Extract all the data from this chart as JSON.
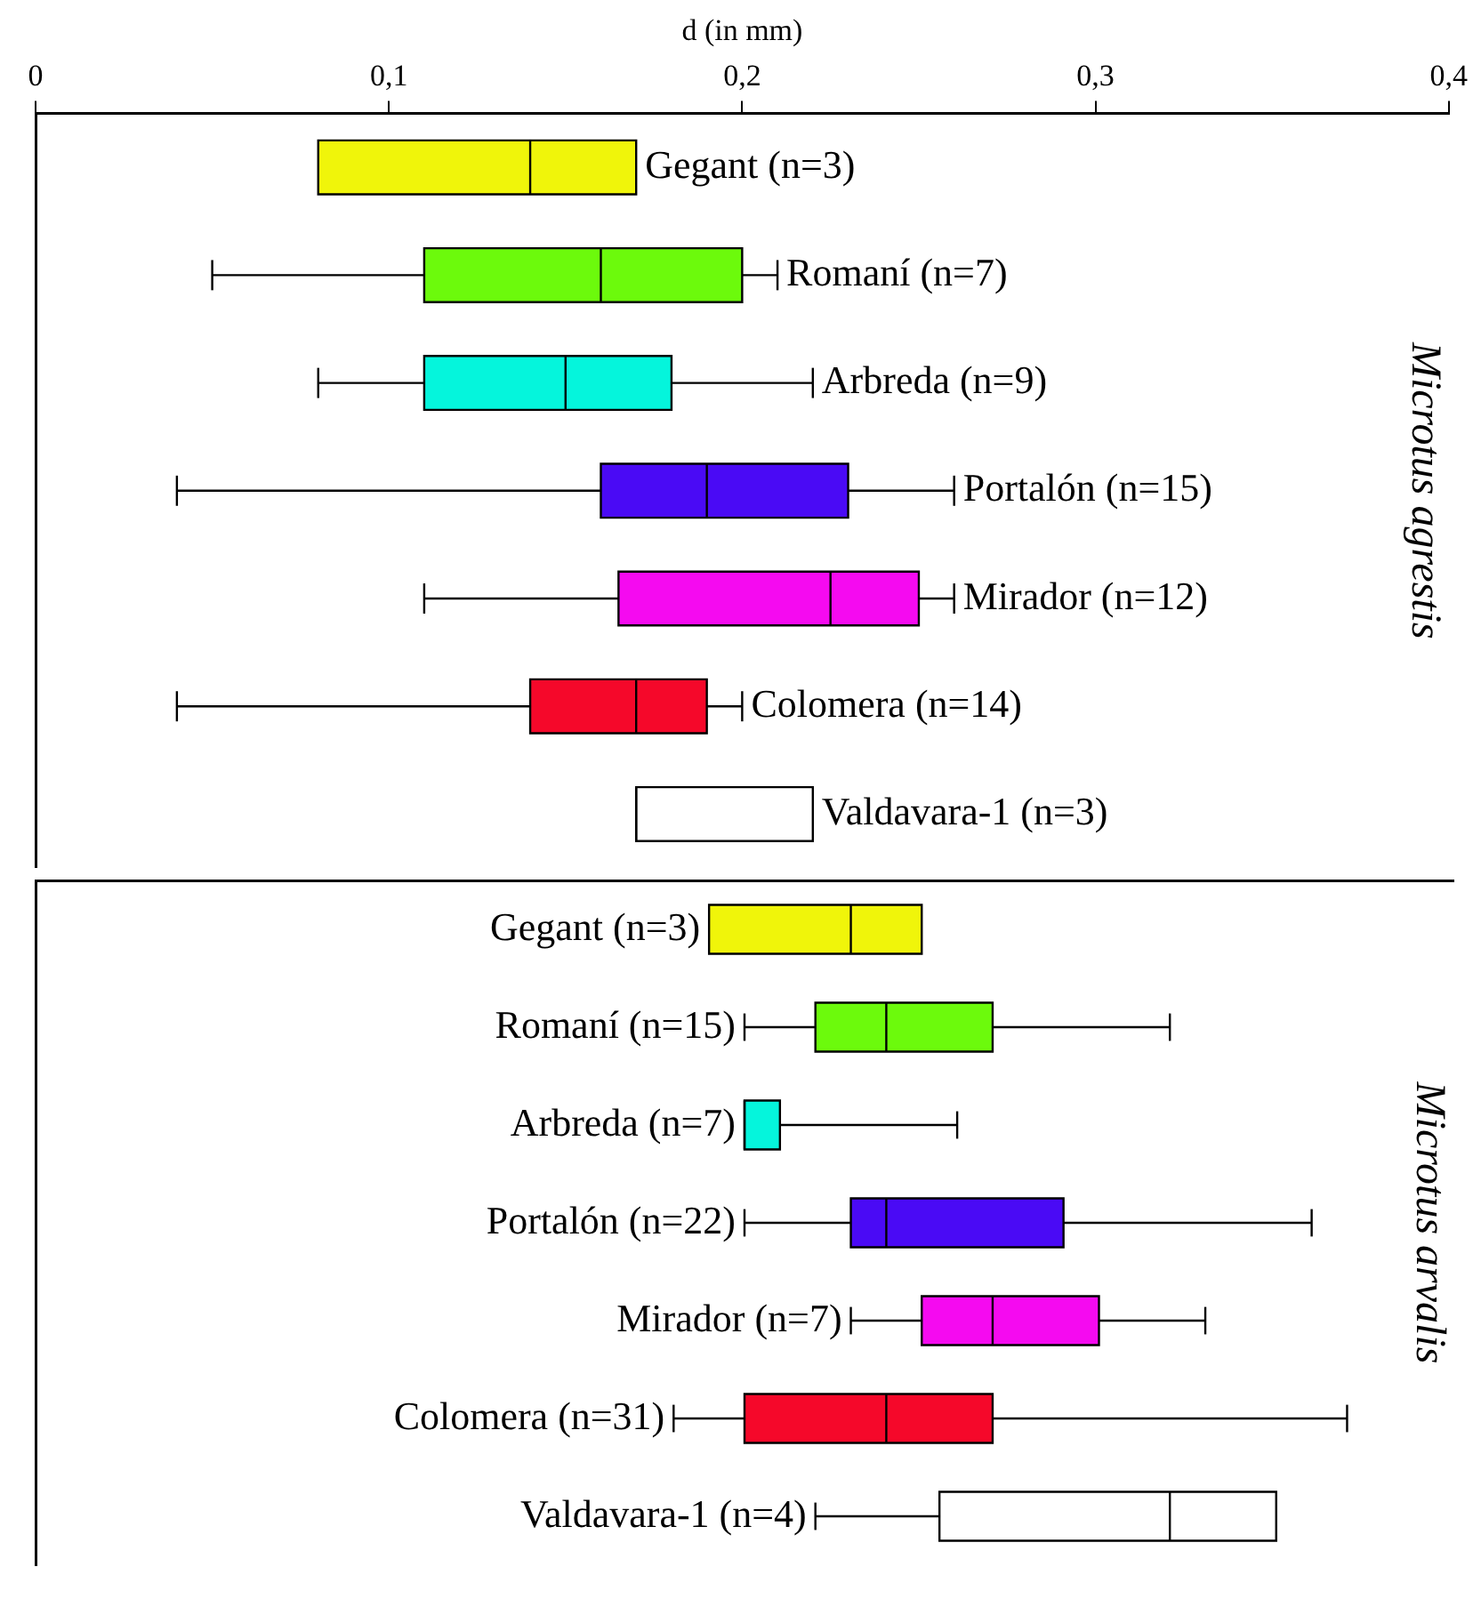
{
  "chart_data": [
    {
      "type": "box",
      "orientation": "horizontal",
      "xlabel": "d (in mm)",
      "ylabel": "Microtus agrestis",
      "tick_labels": "x",
      "grid": false,
      "legend": false,
      "categories": [
        "Gegant (n=3)",
        "Romaní (n=7)",
        "Arbreda (n=9)",
        "Portalón (n=15)",
        "Mirador (n=12)",
        "Colomera (n=14)",
        "Valdavara-1 (n=3)"
      ],
      "colors": [
        "#f0f50a",
        "#6cfa0c",
        "#05f5dc",
        "#4a0af5",
        "#f50af0",
        "#f5082a",
        "#ffffff"
      ],
      "boxes": [
        {
          "low": 0.08,
          "q1": 0.08,
          "median": 0.14,
          "q3": 0.17,
          "high": 0.17
        },
        {
          "low": 0.05,
          "q1": 0.11,
          "median": 0.16,
          "q3": 0.2,
          "high": 0.21
        },
        {
          "low": 0.08,
          "q1": 0.11,
          "median": 0.15,
          "q3": 0.18,
          "high": 0.22
        },
        {
          "low": 0.04,
          "q1": 0.16,
          "median": 0.19,
          "q3": 0.23,
          "high": 0.26
        },
        {
          "low": 0.11,
          "q1": 0.165,
          "median": 0.225,
          "q3": 0.25,
          "high": 0.26
        },
        {
          "low": 0.04,
          "q1": 0.14,
          "median": 0.17,
          "q3": 0.19,
          "high": 0.2
        },
        {
          "low": 0.17,
          "q1": 0.17,
          "median": 0.17,
          "q3": 0.22,
          "high": 0.22
        }
      ],
      "xlim": [
        0,
        0.4
      ],
      "xticks": [
        0,
        {
          "value": 0.1,
          "label": "0,1"
        },
        {
          "value": 0.2,
          "label": "0,2"
        },
        {
          "value": 0.3,
          "label": "0,3"
        },
        {
          "value": 0.4,
          "label": "0,4"
        }
      ]
    },
    {
      "type": "box",
      "orientation": "horizontal",
      "ylabel": "Microtus arvalis",
      "tick_labels": false,
      "grid": false,
      "legend": false,
      "categories": [
        "Gegant (n=3)",
        "Romaní (n=15)",
        "Arbreda (n=7)",
        "Portalón (n=22)",
        "Mirador (n=7)",
        "Colomera (n=31)",
        "Valdavara-1 (n=4)"
      ],
      "colors": [
        "#f0f50a",
        "#6cfa0c",
        "#05f5dc",
        "#4a0af5",
        "#f50af0",
        "#f5082a",
        "#ffffff"
      ],
      "boxes": [
        {
          "low": 0.19,
          "q1": 0.19,
          "median": 0.23,
          "q3": 0.25,
          "high": 0.25
        },
        {
          "low": 0.2,
          "q1": 0.22,
          "median": 0.24,
          "q3": 0.27,
          "high": 0.32
        },
        {
          "low": 0.2,
          "q1": 0.2,
          "median": 0.2,
          "q3": 0.21,
          "high": 0.26
        },
        {
          "low": 0.2,
          "q1": 0.23,
          "median": 0.24,
          "q3": 0.29,
          "high": 0.36
        },
        {
          "low": 0.23,
          "q1": 0.25,
          "median": 0.27,
          "q3": 0.3,
          "high": 0.33
        },
        {
          "low": 0.18,
          "q1": 0.2,
          "median": 0.24,
          "q3": 0.27,
          "high": 0.37
        },
        {
          "low": 0.22,
          "q1": 0.255,
          "median": 0.32,
          "q3": 0.35,
          "high": 0.35
        }
      ],
      "xlim": [
        0,
        0.4
      ]
    }
  ]
}
